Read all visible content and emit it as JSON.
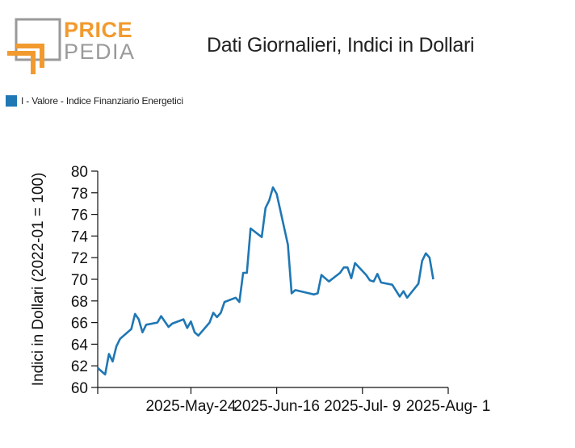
{
  "logo": {
    "word1": "PRICE",
    "word2": "PEDIA",
    "color_primary": "#f29a2e",
    "color_secondary": "#9a9a9a"
  },
  "header": {
    "title": "Dati Giornalieri, Indici in Dollari"
  },
  "legend": {
    "label": "I - Valore - Indice Finanziario Energetici",
    "color": "#1f77b4"
  },
  "chart_data": {
    "type": "line",
    "ylabel": "Indici in Dollari (2022-01 = 100)",
    "xlabel": "",
    "ylim": [
      60,
      80
    ],
    "yticks": [
      60,
      62,
      64,
      66,
      68,
      70,
      72,
      74,
      76,
      78,
      80
    ],
    "xlim": [
      "2025-04-29",
      "2025-08-01"
    ],
    "xticks": [
      {
        "date": "2025-04-29",
        "label": ""
      },
      {
        "date": "2025-05-24",
        "label": "2025-May-24"
      },
      {
        "date": "2025-06-16",
        "label": "2025-Jun-16"
      },
      {
        "date": "2025-07-09",
        "label": "2025-Jul- 9"
      },
      {
        "date": "2025-08-01",
        "label": "2025-Aug- 1"
      }
    ],
    "grid": false,
    "legend_position": "top-left",
    "series": [
      {
        "name": "I - Valore - Indice Finanziario Energetici",
        "color": "#1f77b4",
        "points": [
          [
            "2025-04-29",
            61.8
          ],
          [
            "2025-05-01",
            61.2
          ],
          [
            "2025-05-02",
            63.1
          ],
          [
            "2025-05-03",
            62.4
          ],
          [
            "2025-05-04",
            63.8
          ],
          [
            "2025-05-05",
            64.5
          ],
          [
            "2025-05-08",
            65.4
          ],
          [
            "2025-05-09",
            66.8
          ],
          [
            "2025-05-10",
            66.3
          ],
          [
            "2025-05-11",
            65.1
          ],
          [
            "2025-05-12",
            65.8
          ],
          [
            "2025-05-15",
            66.0
          ],
          [
            "2025-05-16",
            66.6
          ],
          [
            "2025-05-18",
            65.6
          ],
          [
            "2025-05-19",
            65.9
          ],
          [
            "2025-05-22",
            66.3
          ],
          [
            "2025-05-23",
            65.5
          ],
          [
            "2025-05-24",
            66.1
          ],
          [
            "2025-05-25",
            65.1
          ],
          [
            "2025-05-26",
            64.8
          ],
          [
            "2025-05-29",
            66.0
          ],
          [
            "2025-05-30",
            66.9
          ],
          [
            "2025-05-31",
            66.5
          ],
          [
            "2025-06-01",
            66.9
          ],
          [
            "2025-06-02",
            67.9
          ],
          [
            "2025-06-05",
            68.3
          ],
          [
            "2025-06-06",
            67.9
          ],
          [
            "2025-06-07",
            70.6
          ],
          [
            "2025-06-08",
            70.6
          ],
          [
            "2025-06-09",
            74.7
          ],
          [
            "2025-06-12",
            73.9
          ],
          [
            "2025-06-13",
            76.6
          ],
          [
            "2025-06-14",
            77.3
          ],
          [
            "2025-06-15",
            78.5
          ],
          [
            "2025-06-16",
            77.9
          ],
          [
            "2025-06-19",
            73.2
          ],
          [
            "2025-06-20",
            68.7
          ],
          [
            "2025-06-21",
            69.0
          ],
          [
            "2025-06-26",
            68.6
          ],
          [
            "2025-06-27",
            68.7
          ],
          [
            "2025-06-28",
            70.4
          ],
          [
            "2025-06-30",
            69.8
          ],
          [
            "2025-07-03",
            70.6
          ],
          [
            "2025-07-04",
            71.1
          ],
          [
            "2025-07-05",
            71.1
          ],
          [
            "2025-07-06",
            70.1
          ],
          [
            "2025-07-07",
            71.5
          ],
          [
            "2025-07-10",
            70.4
          ],
          [
            "2025-07-11",
            69.9
          ],
          [
            "2025-07-12",
            69.8
          ],
          [
            "2025-07-13",
            70.5
          ],
          [
            "2025-07-14",
            69.7
          ],
          [
            "2025-07-17",
            69.5
          ],
          [
            "2025-07-19",
            68.4
          ],
          [
            "2025-07-20",
            68.9
          ],
          [
            "2025-07-21",
            68.3
          ],
          [
            "2025-07-24",
            69.6
          ],
          [
            "2025-07-25",
            71.7
          ],
          [
            "2025-07-26",
            72.4
          ],
          [
            "2025-07-27",
            72.0
          ],
          [
            "2025-07-28",
            70.0
          ]
        ]
      }
    ]
  }
}
